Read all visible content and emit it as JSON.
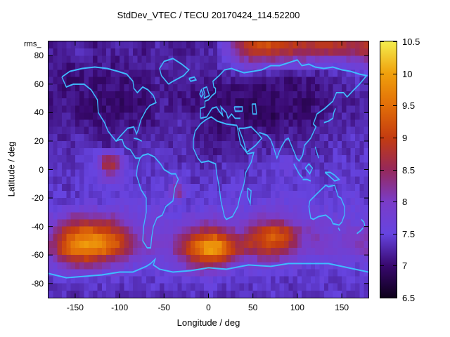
{
  "title": "StdDev_VTEC / TECU 20170424_114.52200",
  "stray_text": "rms_",
  "colors": {
    "background": "#ffffff",
    "coastline": "#3fbcff",
    "axis": "#000000"
  },
  "chart_data": {
    "type": "heatmap",
    "title": "StdDev_VTEC / TECU 20170424_114.52200",
    "xlabel": "Longitude / deg",
    "ylabel": "Latitude / deg",
    "xlim": [
      -180,
      180
    ],
    "ylim": [
      -90,
      90
    ],
    "xticks": [
      -150,
      -100,
      -50,
      0,
      50,
      100,
      150
    ],
    "yticks": [
      -80,
      -60,
      -40,
      -20,
      0,
      20,
      40,
      60,
      80
    ],
    "colorbar": {
      "min": 6.5,
      "max": 10.5,
      "ticks": [
        6.5,
        7,
        7.5,
        8,
        8.5,
        9,
        9.5,
        10,
        10.5
      ]
    },
    "palette": [
      {
        "t": 0.0,
        "c": "#0d001a"
      },
      {
        "t": 0.125,
        "c": "#38086e"
      },
      {
        "t": 0.25,
        "c": "#6644e0"
      },
      {
        "t": 0.375,
        "c": "#7a3cc8"
      },
      {
        "t": 0.5,
        "c": "#96285a"
      },
      {
        "t": 0.625,
        "c": "#c43c10"
      },
      {
        "t": 0.75,
        "c": "#e26e08"
      },
      {
        "t": 0.875,
        "c": "#f0a00c"
      },
      {
        "t": 1.0,
        "c": "#f4ee4e"
      }
    ],
    "grid": {
      "lon_start": -175,
      "lon_step": 10,
      "lat_start": 85,
      "lat_step": -10,
      "values": [
        [
          7.2,
          7.1,
          7.2,
          7.3,
          7.2,
          7.1,
          7.2,
          7.2,
          7.3,
          7.2,
          7.1,
          7.2,
          7.3,
          7.2,
          7.2,
          7.1,
          7.2,
          7.3,
          7.2,
          7.6,
          8.0,
          8.5,
          8.9,
          9.1,
          9.2,
          9.1,
          9.0,
          8.9,
          8.8,
          8.7,
          8.8,
          8.9,
          8.8,
          8.6,
          8.7,
          8.8
        ],
        [
          7.2,
          7.1,
          7.1,
          7.2,
          7.2,
          7.1,
          7.2,
          7.1,
          7.2,
          7.2,
          7.1,
          7.2,
          7.2,
          7.3,
          7.2,
          7.2,
          7.3,
          7.2,
          7.3,
          7.4,
          7.6,
          7.9,
          8.0,
          8.1,
          8.0,
          8.0,
          7.9,
          7.8,
          7.9,
          7.8,
          7.7,
          7.6,
          7.6,
          7.8,
          7.9,
          8.0
        ],
        [
          7.2,
          7.1,
          7.0,
          7.0,
          7.1,
          7.0,
          7.0,
          7.1,
          7.0,
          7.1,
          7.1,
          7.2,
          7.2,
          7.1,
          7.2,
          7.2,
          7.1,
          7.2,
          7.2,
          7.1,
          7.2,
          7.1,
          7.1,
          7.0,
          7.0,
          7.1,
          7.0,
          7.0,
          7.1,
          7.0,
          7.1,
          7.2,
          7.2,
          7.3,
          7.4,
          7.3
        ],
        [
          7.1,
          7.0,
          7.0,
          7.1,
          7.0,
          7.0,
          7.1,
          7.0,
          7.0,
          7.1,
          7.0,
          7.1,
          7.2,
          7.1,
          7.1,
          7.2,
          7.1,
          7.1,
          7.0,
          7.1,
          7.0,
          7.0,
          7.1,
          7.0,
          7.0,
          7.0,
          7.1,
          7.0,
          7.1,
          7.0,
          7.1,
          7.1,
          7.2,
          7.2,
          7.3,
          7.2
        ],
        [
          7.1,
          7.2,
          7.1,
          7.0,
          7.0,
          6.9,
          7.0,
          7.0,
          6.9,
          7.0,
          7.0,
          7.1,
          7.2,
          7.2,
          7.1,
          7.1,
          7.0,
          7.1,
          7.0,
          7.0,
          6.9,
          7.0,
          6.9,
          6.9,
          7.0,
          6.9,
          7.0,
          7.0,
          6.9,
          7.0,
          7.1,
          7.1,
          7.2,
          7.1,
          7.2,
          7.2
        ],
        [
          7.2,
          7.1,
          7.2,
          7.1,
          7.1,
          7.0,
          7.1,
          7.0,
          7.1,
          7.1,
          7.0,
          7.1,
          7.2,
          7.2,
          7.3,
          7.2,
          7.1,
          7.1,
          7.0,
          7.0,
          7.1,
          7.0,
          6.9,
          7.0,
          6.9,
          6.9,
          7.0,
          7.0,
          7.1,
          7.0,
          7.1,
          7.2,
          7.2,
          7.3,
          7.2,
          7.3
        ],
        [
          7.3,
          7.2,
          7.2,
          7.3,
          7.2,
          7.2,
          7.1,
          7.2,
          7.2,
          7.1,
          7.2,
          7.2,
          7.3,
          7.2,
          7.3,
          7.2,
          7.2,
          7.1,
          7.0,
          7.0,
          7.1,
          7.0,
          7.1,
          7.1,
          7.2,
          7.1,
          7.2,
          7.2,
          7.1,
          7.2,
          7.2,
          7.3,
          7.2,
          7.3,
          7.4,
          7.3
        ],
        [
          7.3,
          7.3,
          7.2,
          7.3,
          7.4,
          7.3,
          7.2,
          7.3,
          7.3,
          7.2,
          7.3,
          7.4,
          7.3,
          7.3,
          7.2,
          7.3,
          7.2,
          7.2,
          7.1,
          7.2,
          7.2,
          7.1,
          7.2,
          7.3,
          7.2,
          7.3,
          7.3,
          7.2,
          7.3,
          7.3,
          7.2,
          7.3,
          7.4,
          7.3,
          7.3,
          7.4
        ],
        [
          7.3,
          7.4,
          7.3,
          7.4,
          7.5,
          7.8,
          9.0,
          8.8,
          7.7,
          7.4,
          7.4,
          7.3,
          7.4,
          7.3,
          7.3,
          7.4,
          7.3,
          7.2,
          7.3,
          7.3,
          7.4,
          7.3,
          7.4,
          7.4,
          7.3,
          7.5,
          7.7,
          7.6,
          7.4,
          7.3,
          7.4,
          7.3,
          7.4,
          7.4,
          7.3,
          7.4
        ],
        [
          7.4,
          7.3,
          7.4,
          7.4,
          7.5,
          7.6,
          7.9,
          8.0,
          7.6,
          7.4,
          7.3,
          7.4,
          7.5,
          7.4,
          7.6,
          7.4,
          7.3,
          7.3,
          7.4,
          7.3,
          7.4,
          7.4,
          7.3,
          7.4,
          7.5,
          7.4,
          7.5,
          7.4,
          7.4,
          7.5,
          7.4,
          7.3,
          7.4,
          7.5,
          7.4,
          7.4
        ],
        [
          7.4,
          7.4,
          7.3,
          7.4,
          7.4,
          7.5,
          7.4,
          7.4,
          7.5,
          7.4,
          7.4,
          7.4,
          7.4,
          7.5,
          8.6,
          7.6,
          7.4,
          7.4,
          7.5,
          7.4,
          7.5,
          7.4,
          7.5,
          7.5,
          7.4,
          7.5,
          7.5,
          7.4,
          7.5,
          7.4,
          7.5,
          7.5,
          7.4,
          7.5,
          7.5,
          7.4
        ],
        [
          7.5,
          7.4,
          7.5,
          7.5,
          7.6,
          7.5,
          7.5,
          7.6,
          7.6,
          7.7,
          7.6,
          7.5,
          7.6,
          7.5,
          7.5,
          7.4,
          7.5,
          7.5,
          7.6,
          7.5,
          7.5,
          7.6,
          7.5,
          7.6,
          7.6,
          7.7,
          7.6,
          7.6,
          7.5,
          7.6,
          7.5,
          7.6,
          7.5,
          7.6,
          7.6,
          7.5
        ],
        [
          7.8,
          8.0,
          8.3,
          8.4,
          8.4,
          8.3,
          8.4,
          8.2,
          8.0,
          7.8,
          7.6,
          7.6,
          7.7,
          7.6,
          7.6,
          7.7,
          7.8,
          7.9,
          7.9,
          7.8,
          7.7,
          7.7,
          7.9,
          8.0,
          8.1,
          8.1,
          8.0,
          7.9,
          7.7,
          7.8,
          7.7,
          7.6,
          7.7,
          7.7,
          7.6,
          7.7
        ],
        [
          8.2,
          8.8,
          9.2,
          9.5,
          9.6,
          9.5,
          9.3,
          9.0,
          8.7,
          8.2,
          8.0,
          7.9,
          7.8,
          7.9,
          8.0,
          8.3,
          8.6,
          8.8,
          9.0,
          8.8,
          8.4,
          8.2,
          8.6,
          9.0,
          9.2,
          9.4,
          9.2,
          8.8,
          8.2,
          8.0,
          8.0,
          7.9,
          7.8,
          8.0,
          7.9,
          8.0
        ],
        [
          8.4,
          9.2,
          9.7,
          9.9,
          10.0,
          9.9,
          9.7,
          9.4,
          9.0,
          8.4,
          8.2,
          8.0,
          7.9,
          8.0,
          8.4,
          9.0,
          9.6,
          10.0,
          10.4,
          10.0,
          9.3,
          8.8,
          8.8,
          8.8,
          9.0,
          9.0,
          8.8,
          8.4,
          8.0,
          7.9,
          8.0,
          7.9,
          7.8,
          7.9,
          8.0,
          8.1
        ],
        [
          7.8,
          8.2,
          8.4,
          8.6,
          8.6,
          8.4,
          8.2,
          8.0,
          7.9,
          7.8,
          7.7,
          7.6,
          7.7,
          7.6,
          7.8,
          8.2,
          8.6,
          8.9,
          8.8,
          8.6,
          8.2,
          7.9,
          7.8,
          7.9,
          8.0,
          7.9,
          7.8,
          7.7,
          7.6,
          7.6,
          7.5,
          7.6,
          7.5,
          7.6,
          7.5,
          7.6
        ],
        [
          7.5,
          7.6,
          7.5,
          7.6,
          7.6,
          7.5,
          7.5,
          7.6,
          7.5,
          7.4,
          7.5,
          7.4,
          7.5,
          7.4,
          7.5,
          7.6,
          7.6,
          7.7,
          7.6,
          7.5,
          7.5,
          7.4,
          7.5,
          7.4,
          7.5,
          7.4,
          7.4,
          7.5,
          7.4,
          7.4,
          7.5,
          7.4,
          7.4,
          7.5,
          7.4,
          7.5
        ],
        [
          7.3,
          7.4,
          7.3,
          7.3,
          7.4,
          7.3,
          7.4,
          7.3,
          7.3,
          7.4,
          7.3,
          7.4,
          7.3,
          7.4,
          7.3,
          7.3,
          7.4,
          7.3,
          7.4,
          7.3,
          7.3,
          7.4,
          7.3,
          7.4,
          7.3,
          7.4,
          7.3,
          7.3,
          7.4,
          7.3,
          7.4,
          7.3,
          7.4,
          7.3,
          7.4,
          7.3
        ]
      ]
    }
  }
}
